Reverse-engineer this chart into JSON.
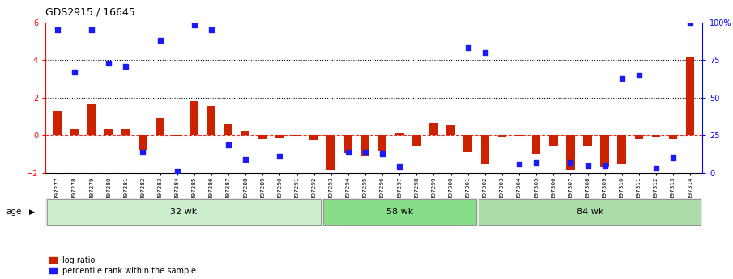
{
  "title": "GDS2915 / 16645",
  "samples": [
    "GSM97277",
    "GSM97278",
    "GSM97279",
    "GSM97280",
    "GSM97281",
    "GSM97282",
    "GSM97283",
    "GSM97284",
    "GSM97285",
    "GSM97286",
    "GSM97287",
    "GSM97288",
    "GSM97289",
    "GSM97290",
    "GSM97291",
    "GSM97292",
    "GSM97293",
    "GSM97294",
    "GSM97295",
    "GSM97296",
    "GSM97297",
    "GSM97298",
    "GSM97299",
    "GSM97300",
    "GSM97301",
    "GSM97302",
    "GSM97303",
    "GSM97304",
    "GSM97305",
    "GSM97306",
    "GSM97307",
    "GSM97308",
    "GSM97309",
    "GSM97310",
    "GSM97311",
    "GSM97312",
    "GSM97313",
    "GSM97314"
  ],
  "log_ratio": [
    1.3,
    0.3,
    1.7,
    0.3,
    0.35,
    -0.75,
    0.9,
    -0.05,
    1.8,
    1.55,
    0.6,
    0.25,
    -0.2,
    -0.15,
    -0.05,
    -0.25,
    -1.85,
    -0.95,
    -1.1,
    -0.85,
    0.15,
    -0.6,
    0.65,
    0.55,
    -0.9,
    -1.55,
    -0.1,
    -0.05,
    -1.0,
    -0.6,
    -1.85,
    -0.6,
    -1.7,
    -1.55,
    -0.2,
    -0.1,
    -0.2,
    4.2
  ],
  "percentile_rank_pct": [
    95,
    null,
    95,
    73,
    71,
    14,
    88,
    null,
    98,
    95,
    null,
    null,
    null,
    null,
    null,
    null,
    null,
    null,
    null,
    null,
    null,
    null,
    null,
    null,
    83,
    80,
    null,
    null,
    null,
    null,
    null,
    null,
    null,
    63,
    65,
    null,
    null,
    100
  ],
  "percentile_rank_pct2": [
    null,
    67,
    null,
    null,
    null,
    null,
    null,
    null,
    null,
    null,
    19,
    9,
    null,
    11,
    null,
    null,
    null,
    null,
    null,
    null,
    4,
    null,
    null,
    null,
    null,
    null,
    null,
    null,
    null,
    null,
    null,
    null,
    null,
    null,
    null,
    null,
    null,
    null
  ],
  "percentile_rank_pct_low": [
    null,
    null,
    null,
    null,
    null,
    null,
    null,
    1,
    null,
    null,
    null,
    null,
    null,
    null,
    null,
    null,
    null,
    14,
    14,
    13,
    null,
    null,
    null,
    null,
    null,
    null,
    null,
    6,
    7,
    null,
    7,
    5,
    5,
    null,
    null,
    3,
    10,
    null
  ],
  "groups": [
    {
      "label": "32 wk",
      "start": 0,
      "end": 16
    },
    {
      "label": "58 wk",
      "start": 16,
      "end": 25
    },
    {
      "label": "84 wk",
      "start": 25,
      "end": 38
    }
  ],
  "ylim_left": [
    -2.0,
    6.0
  ],
  "pct_min": -2.0,
  "pct_max": 6.0,
  "pct_data_min": 0,
  "pct_data_max": 100,
  "bar_color": "#cc2200",
  "dot_color": "#1a1aff",
  "bg_color": "#ffffff",
  "dotted_lines_pct": [
    50,
    75
  ],
  "zero_line_color": "#dd3333",
  "group_colors": [
    "#cceecc",
    "#88dd88",
    "#aaddaa"
  ],
  "right_yticks": [
    0,
    25,
    50,
    75,
    100
  ],
  "right_yticklabels": [
    "0",
    "25",
    "50",
    "75",
    "100%"
  ],
  "left_yticks": [
    -2,
    0,
    2,
    4,
    6
  ]
}
